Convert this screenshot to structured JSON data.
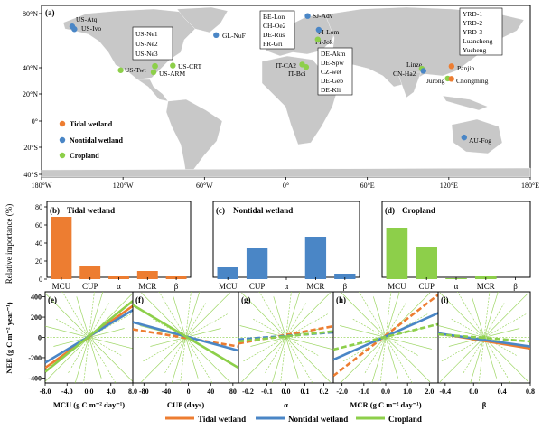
{
  "colors": {
    "tidal": "#ED7D31",
    "nontidal": "#4A86C6",
    "cropland": "#8DCF4A",
    "land": "#C8C8C8"
  },
  "map": {
    "panel_letter": "(a)",
    "lat_ticks": [
      "80°N",
      "40°N",
      "20°N",
      "0°",
      "20°S",
      "40°S"
    ],
    "lon_ticks": [
      "180°W",
      "120°W",
      "60°W",
      "0°",
      "60°E",
      "120°E",
      "180°E"
    ],
    "legend": [
      "Tidal wetland",
      "Nontidal wetland",
      "Cropland"
    ],
    "labels": {
      "us_atq": "US-Atq",
      "us_ivo": "US-Ivo",
      "gl_nuf": "GL-NuF",
      "us_twt": "US-Twt",
      "us_arm": "US-ARM",
      "us_crt": "US-CRT",
      "us_ne": [
        "US-Ne1",
        "US-Ne2",
        "US-Ne3"
      ],
      "be_box": [
        "BE-Lon",
        "CH-Oe2",
        "DE-Rus",
        "FR-Gri"
      ],
      "sj_adv": "SJ-Adv",
      "fi_lom": "FI-Lom",
      "fi_jok": "FI-Jok",
      "it_ca2": "IT-CA2",
      "it_bci": "IT-Bci",
      "de_box": [
        "DE-Akm",
        "DE-Spw",
        "CZ-wet",
        "DE-Geb",
        "DE-Kli"
      ],
      "linze": "Linze",
      "cn_ha2": "CN-Ha2",
      "yrd_box": [
        "YRD-1",
        "YRD-2",
        "YRD-3",
        "Luancheng",
        "Yucheng"
      ],
      "panjin": "Panjin",
      "jurong": "Jurong",
      "chongming": "Chongming",
      "au_fog": "AU-Fog"
    }
  },
  "bars": {
    "ylabel": "Relative importance (%)",
    "yticks": [
      "0",
      "20",
      "40",
      "60",
      "80"
    ],
    "categories": [
      "MCU",
      "CUP",
      "α",
      "MCR",
      "β"
    ]
  },
  "lines": {
    "ylabel": "NEE (g C m⁻² year⁻¹)",
    "yticks": [
      "-400",
      "-200",
      "0",
      "200",
      "400"
    ],
    "legend": [
      "Tidal wetland",
      "Nontidal wetland",
      "Cropland"
    ]
  },
  "chart_data": [
    {
      "type": "map",
      "sites": [
        {
          "name": "US-Atq",
          "lon": -157.4,
          "lat": 70.5,
          "class": "Nontidal wetland"
        },
        {
          "name": "US-Ivo",
          "lon": -155.8,
          "lat": 68.5,
          "class": "Nontidal wetland"
        },
        {
          "name": "GL-NuF",
          "lon": -51.4,
          "lat": 64.1,
          "class": "Nontidal wetland"
        },
        {
          "name": "US-Twt",
          "lon": -121.7,
          "lat": 38.1,
          "class": "Cropland"
        },
        {
          "name": "US-ARM",
          "lon": -97.5,
          "lat": 36.6,
          "class": "Cropland"
        },
        {
          "name": "US-CRT",
          "lon": -83.3,
          "lat": 41.6,
          "class": "Cropland"
        },
        {
          "name": "US-Ne1",
          "lon": -96.5,
          "lat": 41.2,
          "class": "Cropland"
        },
        {
          "name": "US-Ne2",
          "lon": -96.5,
          "lat": 41.2,
          "class": "Cropland"
        },
        {
          "name": "US-Ne3",
          "lon": -96.4,
          "lat": 41.2,
          "class": "Cropland"
        },
        {
          "name": "SJ-Adv",
          "lon": 16.0,
          "lat": 78.2,
          "class": "Nontidal wetland"
        },
        {
          "name": "FI-Lom",
          "lon": 24.2,
          "lat": 68.0,
          "class": "Nontidal wetland"
        },
        {
          "name": "FI-Jok",
          "lon": 23.5,
          "lat": 60.9,
          "class": "Cropland"
        },
        {
          "name": "IT-CA2",
          "lon": 12.0,
          "lat": 42.4,
          "class": "Cropland"
        },
        {
          "name": "IT-Bci",
          "lon": 14.9,
          "lat": 40.5,
          "class": "Cropland"
        },
        {
          "name": "Linze",
          "lon": 100.1,
          "lat": 39.3,
          "class": "Cropland"
        },
        {
          "name": "CN-Ha2",
          "lon": 101.3,
          "lat": 37.6,
          "class": "Nontidal wetland"
        },
        {
          "name": "Panjin",
          "lon": 122.0,
          "lat": 41.1,
          "class": "Tidal wetland"
        },
        {
          "name": "Jurong",
          "lon": 119.2,
          "lat": 31.8,
          "class": "Cropland"
        },
        {
          "name": "Chongming",
          "lon": 121.9,
          "lat": 31.5,
          "class": "Tidal wetland"
        },
        {
          "name": "AU-Fog",
          "lon": 131.3,
          "lat": -12.5,
          "class": "Nontidal wetland"
        }
      ]
    },
    {
      "type": "bar",
      "letter": "(b)",
      "title": "Tidal wetland",
      "categories": [
        "MCU",
        "CUP",
        "α",
        "MCR",
        "β"
      ],
      "values": [
        69,
        14,
        4,
        9,
        3
      ],
      "ylim": [
        0,
        80
      ]
    },
    {
      "type": "bar",
      "letter": "(c)",
      "title": "Nontidal wetland",
      "categories": [
        "MCU",
        "CUP",
        "α",
        "MCR",
        "β"
      ],
      "values": [
        13,
        34,
        0,
        47,
        6
      ],
      "ylim": [
        0,
        80
      ]
    },
    {
      "type": "bar",
      "letter": "(d)",
      "title": "Cropland",
      "categories": [
        "MCU",
        "CUP",
        "α",
        "MCR",
        "β"
      ],
      "values": [
        57,
        36,
        1,
        4,
        0
      ],
      "ylim": [
        0,
        80
      ]
    },
    {
      "type": "line",
      "letter": "(e)",
      "xlabel": "MCU (g C m⁻² day⁻¹)",
      "xlim": [
        -8,
        8
      ],
      "xticks": [
        "-8.0",
        "-4.0",
        "0.0",
        "4.0",
        "8.0"
      ],
      "ylim": [
        -450,
        450
      ],
      "series": [
        {
          "name": "Tidal wetland",
          "x": [
            -8,
            8
          ],
          "y": [
            -300,
            310
          ]
        },
        {
          "name": "Nontidal wetland",
          "x": [
            -8,
            8
          ],
          "y": [
            -250,
            270
          ]
        },
        {
          "name": "Cropland",
          "x": [
            -8,
            8
          ],
          "y": [
            -340,
            360
          ]
        }
      ]
    },
    {
      "type": "line",
      "letter": "(f)",
      "xlabel": "CUP (days)",
      "xlim": [
        -100,
        90
      ],
      "xticks": [
        "-80",
        "-40",
        "0",
        "40",
        "80"
      ],
      "ylim": [
        -450,
        450
      ],
      "series": [
        {
          "name": "Tidal wetland",
          "x": [
            -100,
            90
          ],
          "y": [
            80,
            -90
          ],
          "dashed": true
        },
        {
          "name": "Nontidal wetland",
          "x": [
            -100,
            90
          ],
          "y": [
            150,
            -130
          ]
        },
        {
          "name": "Cropland",
          "x": [
            -100,
            90
          ],
          "y": [
            320,
            -300
          ]
        }
      ]
    },
    {
      "type": "line",
      "letter": "(g)",
      "xlabel": "α",
      "xlim": [
        -0.25,
        0.25
      ],
      "xticks": [
        "-0.2",
        "-0.1",
        "0.0",
        "0.1",
        "0.2"
      ],
      "ylim": [
        -450,
        450
      ],
      "series": [
        {
          "name": "Tidal wetland",
          "x": [
            -0.25,
            0.25
          ],
          "y": [
            -60,
            110
          ],
          "dashed": true
        },
        {
          "name": "Nontidal wetland",
          "x": [
            -0.25,
            0.25
          ],
          "y": [
            -20,
            50
          ],
          "dashed": true
        },
        {
          "name": "Cropland",
          "x": [
            -0.25,
            0.25
          ],
          "y": [
            -40,
            60
          ],
          "dashed": true
        }
      ]
    },
    {
      "type": "line",
      "letter": "(h)",
      "xlabel": "MCR (g C m⁻² day⁻¹)",
      "xlim": [
        -2.4,
        2.4
      ],
      "xticks": [
        "-2.0",
        "-1.0",
        "0.0",
        "1.0",
        "2.0"
      ],
      "ylim": [
        -450,
        450
      ],
      "series": [
        {
          "name": "Tidal wetland",
          "x": [
            -2.4,
            2.4
          ],
          "y": [
            -380,
            420
          ],
          "dashed": true
        },
        {
          "name": "Nontidal wetland",
          "x": [
            -2.4,
            2.4
          ],
          "y": [
            -220,
            240
          ]
        },
        {
          "name": "Cropland",
          "x": [
            -2.4,
            2.4
          ],
          "y": [
            -120,
            130
          ],
          "dashed": true
        }
      ]
    },
    {
      "type": "line",
      "letter": "(i)",
      "xlabel": "β",
      "xlim": [
        -0.5,
        0.8
      ],
      "xticks": [
        "-0.4",
        "0.0",
        "0.4",
        "0.8"
      ],
      "ylim": [
        -450,
        450
      ],
      "series": [
        {
          "name": "Tidal wetland",
          "x": [
            -0.5,
            0.8
          ],
          "y": [
            40,
            -110
          ]
        },
        {
          "name": "Nontidal wetland",
          "x": [
            -0.5,
            0.8
          ],
          "y": [
            40,
            -90
          ]
        },
        {
          "name": "Cropland",
          "x": [
            -0.5,
            0.8
          ],
          "y": [
            30,
            -40
          ],
          "dashed": true
        }
      ]
    }
  ]
}
